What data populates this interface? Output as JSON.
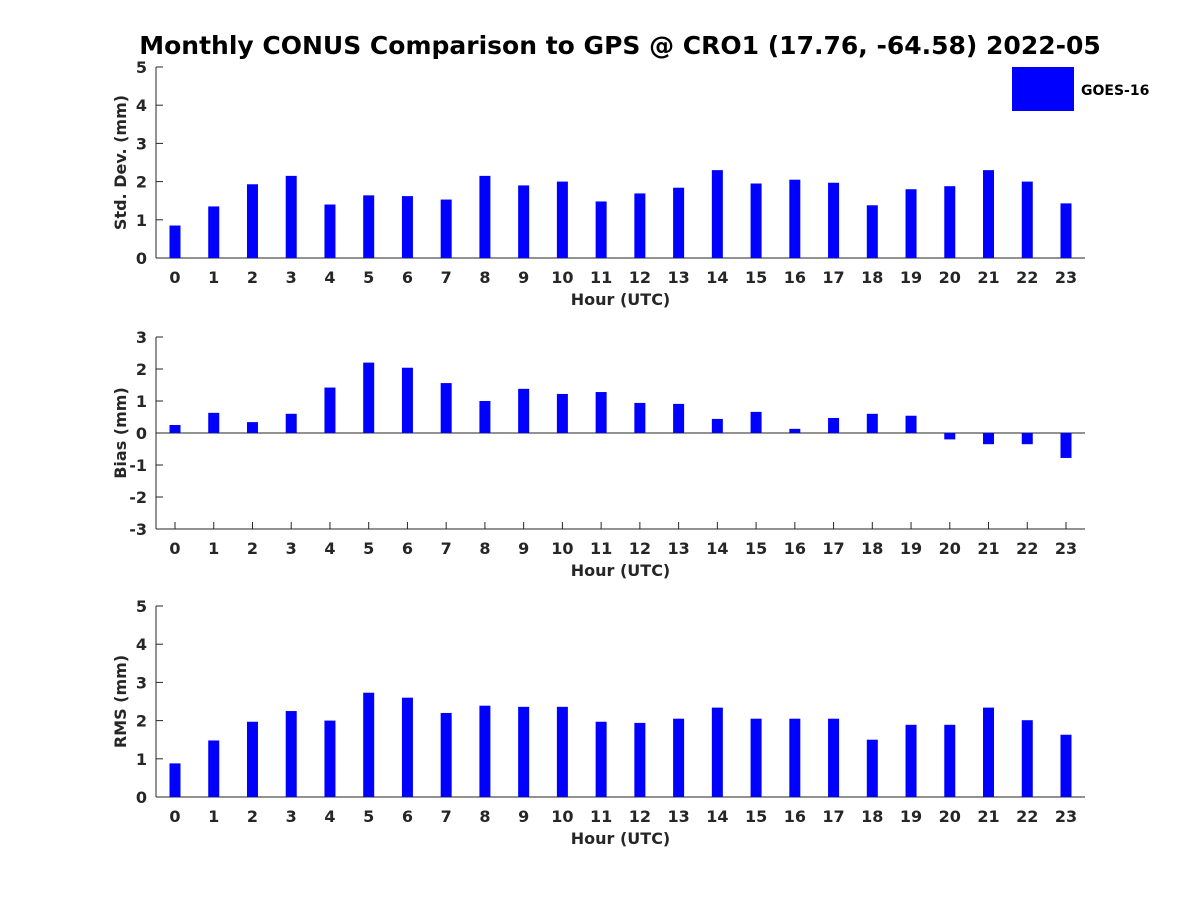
{
  "figure_title": "Monthly CONUS Comparison to GPS @ CRO1 (17.76, -64.58) 2022-05",
  "legend": {
    "label": "GOES-16",
    "color": "#0000ff"
  },
  "chart_data": [
    {
      "type": "bar",
      "name": "std-dev",
      "xlabel": "Hour (UTC)",
      "ylabel": "Std. Dev. (mm)",
      "ylim": [
        0,
        5
      ],
      "yticks": [
        0,
        1,
        2,
        3,
        4,
        5
      ],
      "categories": [
        "0",
        "1",
        "2",
        "3",
        "4",
        "5",
        "6",
        "7",
        "8",
        "9",
        "10",
        "11",
        "12",
        "13",
        "14",
        "15",
        "16",
        "17",
        "18",
        "19",
        "20",
        "21",
        "22",
        "23"
      ],
      "series": [
        {
          "name": "GOES-16",
          "color": "#0000ff",
          "values": [
            0.85,
            1.35,
            1.93,
            2.15,
            1.4,
            1.64,
            1.62,
            1.53,
            2.15,
            1.9,
            2.0,
            1.48,
            1.69,
            1.84,
            2.3,
            1.95,
            2.05,
            1.97,
            1.38,
            1.8,
            1.88,
            2.3,
            2.0,
            1.43
          ]
        }
      ]
    },
    {
      "type": "bar",
      "name": "bias",
      "xlabel": "Hour (UTC)",
      "ylabel": "Bias (mm)",
      "ylim": [
        -3,
        3
      ],
      "yticks": [
        -3,
        -2,
        -1,
        0,
        1,
        2,
        3
      ],
      "zero_line": true,
      "categories": [
        "0",
        "1",
        "2",
        "3",
        "4",
        "5",
        "6",
        "7",
        "8",
        "9",
        "10",
        "11",
        "12",
        "13",
        "14",
        "15",
        "16",
        "17",
        "18",
        "19",
        "20",
        "21",
        "22",
        "23"
      ],
      "series": [
        {
          "name": "GOES-16",
          "color": "#0000ff",
          "values": [
            0.25,
            0.63,
            0.34,
            0.6,
            1.42,
            2.2,
            2.04,
            1.56,
            1.0,
            1.38,
            1.22,
            1.28,
            0.94,
            0.91,
            0.44,
            0.66,
            0.13,
            0.47,
            0.6,
            0.54,
            -0.2,
            -0.35,
            -0.35,
            -0.78
          ]
        }
      ]
    },
    {
      "type": "bar",
      "name": "rms",
      "xlabel": "Hour (UTC)",
      "ylabel": "RMS (mm)",
      "ylim": [
        0,
        5
      ],
      "yticks": [
        0,
        1,
        2,
        3,
        4,
        5
      ],
      "categories": [
        "0",
        "1",
        "2",
        "3",
        "4",
        "5",
        "6",
        "7",
        "8",
        "9",
        "10",
        "11",
        "12",
        "13",
        "14",
        "15",
        "16",
        "17",
        "18",
        "19",
        "20",
        "21",
        "22",
        "23"
      ],
      "series": [
        {
          "name": "GOES-16",
          "color": "#0000ff",
          "values": [
            0.88,
            1.48,
            1.97,
            2.25,
            2.0,
            2.73,
            2.6,
            2.2,
            2.39,
            2.36,
            2.36,
            1.97,
            1.94,
            2.05,
            2.34,
            2.05,
            2.05,
            2.05,
            1.5,
            1.89,
            1.89,
            2.34,
            2.01,
            1.63
          ]
        }
      ]
    }
  ]
}
